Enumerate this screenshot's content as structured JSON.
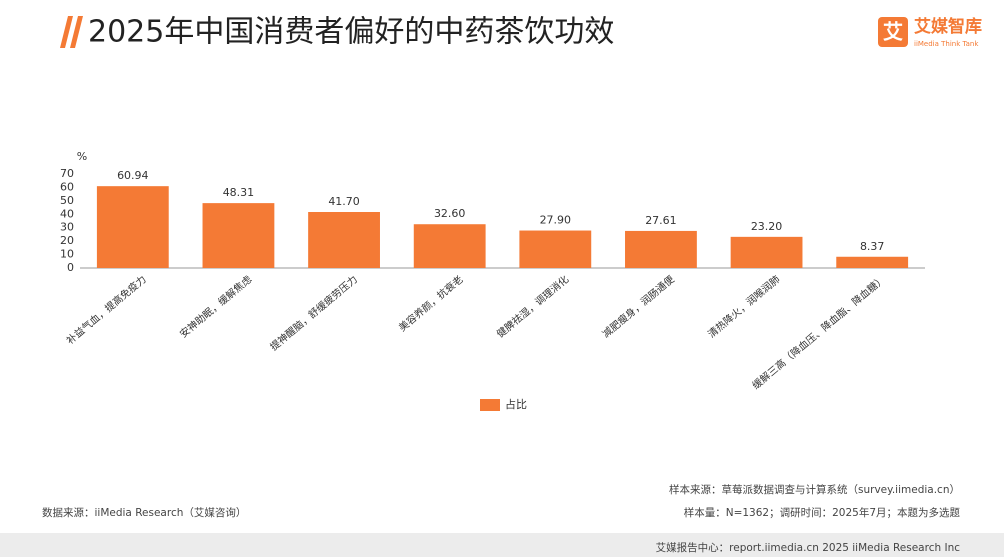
{
  "header": {
    "logo": "艾媒智库",
    "logo_sub": "iiMedia Think Tank"
  },
  "chart_data": {
    "type": "bar",
    "title": "2025年中国消费者偏好的中药茶饮功效",
    "y_label": "%",
    "series_name": "占比",
    "categories": [
      "补益气血，提高免疫力",
      "安神助眠，缓解焦虑",
      "提神醒脑，舒缓疲劳压力",
      "美容养颜，抗衰老",
      "健脾祛湿，调理消化",
      "减肥瘦身，润肠通便",
      "清热降火，润喉润肺",
      "缓解三高（降血压、降血脂、降血糖）"
    ],
    "values": [
      60.94,
      48.31,
      41.7,
      32.6,
      27.9,
      27.61,
      23.2,
      8.37
    ],
    "value_labels": [
      "60.94",
      "48.31",
      "41.70",
      "32.60",
      "27.90",
      "27.61",
      "23.20",
      "8.37"
    ],
    "color": "#f47a35",
    "ylim": [
      0,
      70
    ],
    "yticks": [
      0,
      10,
      20,
      30,
      40,
      50,
      60,
      70
    ],
    "grid": false
  },
  "footer": {
    "source": "数据来源：iiMedia Research（艾媒咨询）",
    "sample_source": "样本来源：草莓派数据调查与计算系统（survey.iimedia.cn）",
    "sample_info": "样本量：N=1362；调研时间：2025年7月；本题为多选题",
    "copyright": "艾媒报告中心：report.iimedia.cn  2025 iiMedia Research Inc"
  }
}
